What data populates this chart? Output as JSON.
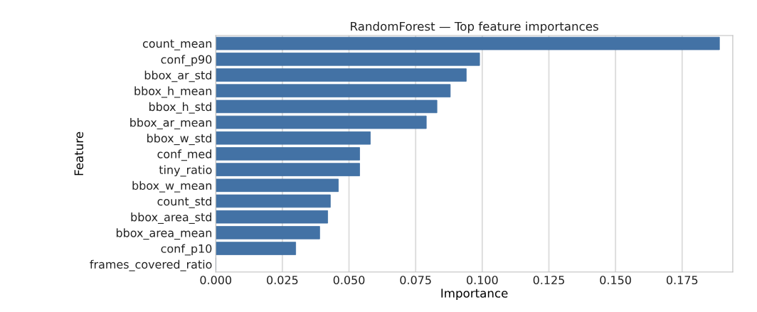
{
  "chart_data": {
    "type": "bar",
    "orientation": "horizontal",
    "title": "RandomForest — Top feature importances",
    "xlabel": "Importance",
    "ylabel": "Feature",
    "categories": [
      "count_mean",
      "conf_p90",
      "bbox_ar_std",
      "bbox_h_mean",
      "bbox_h_std",
      "bbox_ar_mean",
      "bbox_w_std",
      "conf_med",
      "tiny_ratio",
      "bbox_w_mean",
      "count_std",
      "bbox_area_std",
      "bbox_area_mean",
      "conf_p10",
      "frames_covered_ratio"
    ],
    "values": [
      0.189,
      0.099,
      0.094,
      0.088,
      0.083,
      0.079,
      0.058,
      0.054,
      0.054,
      0.046,
      0.043,
      0.042,
      0.039,
      0.03,
      0.0
    ],
    "color": "#4372a5",
    "xlim": [
      0,
      0.194
    ],
    "xticks": [
      {
        "value": 0,
        "label": "0.000"
      },
      {
        "value": 0.025,
        "label": "0.025"
      },
      {
        "value": 0.05,
        "label": "0.050"
      },
      {
        "value": 0.075,
        "label": "0.075"
      },
      {
        "value": 0.1,
        "label": "0.100"
      },
      {
        "value": 0.125,
        "label": "0.125"
      },
      {
        "value": 0.15,
        "label": "0.150"
      },
      {
        "value": 0.175,
        "label": "0.175"
      }
    ],
    "grid": "x"
  }
}
